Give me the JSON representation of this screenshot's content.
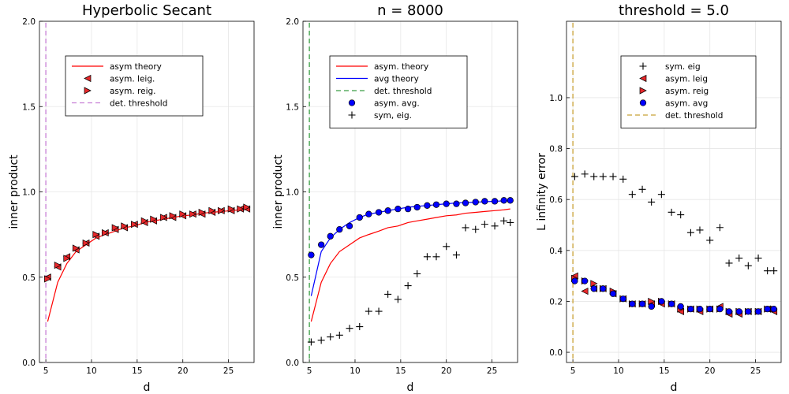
{
  "chart_data": [
    {
      "type": "scatter",
      "title": "Hyperbolic Secant",
      "xlabel": "d",
      "ylabel": "inner product",
      "xlim": [
        4.3,
        27.8
      ],
      "ylim": [
        0,
        2
      ],
      "xticks": [
        5,
        10,
        15,
        20,
        25
      ],
      "yticks": [
        0,
        0.5,
        1,
        1.5,
        2
      ],
      "ytick_labels": [
        "0.0",
        "0.5",
        "1.0",
        "1.5",
        "2.0"
      ],
      "legend": [
        "asym theory",
        "asym. leig.",
        "asym. reig.",
        "det. threshold"
      ],
      "vline": 5,
      "series": [
        {
          "name": "asym theory",
          "kind": "line",
          "color": "#ff0000",
          "x": [
            5.2,
            6.3,
            7.3,
            8.3,
            9.4,
            10.5,
            11.5,
            12.6,
            13.6,
            14.7,
            15.8,
            16.8,
            17.9,
            18.9,
            20.0,
            21.1,
            22.1,
            23.2,
            24.2,
            25.3,
            26.3,
            27.0
          ],
          "y": [
            0.24,
            0.47,
            0.58,
            0.65,
            0.69,
            0.73,
            0.75,
            0.77,
            0.79,
            0.8,
            0.82,
            0.83,
            0.84,
            0.85,
            0.86,
            0.865,
            0.875,
            0.88,
            0.885,
            0.89,
            0.895,
            0.9
          ]
        },
        {
          "name": "asym. leig.",
          "kind": "marker",
          "marker": "ltri",
          "color": "#e8282b",
          "x": [
            5.2,
            6.3,
            7.3,
            8.3,
            9.4,
            10.5,
            11.5,
            12.6,
            13.6,
            14.7,
            15.8,
            16.8,
            17.9,
            18.9,
            20.0,
            21.1,
            22.1,
            23.2,
            24.2,
            25.3,
            26.3,
            27.0
          ],
          "y": [
            0.5,
            0.56,
            0.62,
            0.66,
            0.7,
            0.74,
            0.76,
            0.78,
            0.79,
            0.81,
            0.82,
            0.83,
            0.85,
            0.85,
            0.86,
            0.87,
            0.87,
            0.88,
            0.89,
            0.89,
            0.9,
            0.9
          ]
        },
        {
          "name": "asym. reig.",
          "kind": "marker",
          "marker": "rtri",
          "color": "#e8282b",
          "x": [
            5.2,
            6.3,
            7.3,
            8.3,
            9.4,
            10.5,
            11.5,
            12.6,
            13.6,
            14.7,
            15.8,
            16.8,
            17.9,
            18.9,
            20.0,
            21.1,
            22.1,
            23.2,
            24.2,
            25.3,
            26.3,
            27.0
          ],
          "y": [
            0.49,
            0.57,
            0.61,
            0.67,
            0.7,
            0.75,
            0.76,
            0.79,
            0.8,
            0.81,
            0.83,
            0.84,
            0.85,
            0.86,
            0.87,
            0.87,
            0.88,
            0.89,
            0.89,
            0.9,
            0.9,
            0.91
          ]
        }
      ]
    },
    {
      "type": "scatter",
      "title": "n = 8000",
      "xlabel": "d",
      "ylabel": "inner product",
      "xlim": [
        4.3,
        27.8
      ],
      "ylim": [
        0,
        2
      ],
      "xticks": [
        5,
        10,
        15,
        20,
        25
      ],
      "yticks": [
        0,
        0.5,
        1,
        1.5,
        2
      ],
      "ytick_labels": [
        "0.0",
        "0.5",
        "1.0",
        "1.5",
        "2.0"
      ],
      "legend": [
        "asym. theory",
        "avg theory",
        "det. threshold",
        "asym. avg.",
        "sym, eig."
      ],
      "vline": 5,
      "series": [
        {
          "name": "asym. theory",
          "kind": "line",
          "color": "#ff0000",
          "x": [
            5.2,
            6.3,
            7.3,
            8.3,
            9.4,
            10.5,
            11.5,
            12.6,
            13.6,
            14.7,
            15.8,
            16.8,
            17.9,
            18.9,
            20.0,
            21.1,
            22.1,
            23.2,
            24.2,
            25.3,
            26.3,
            27.0
          ],
          "y": [
            0.24,
            0.47,
            0.58,
            0.65,
            0.69,
            0.73,
            0.75,
            0.77,
            0.79,
            0.8,
            0.82,
            0.83,
            0.84,
            0.85,
            0.86,
            0.865,
            0.875,
            0.88,
            0.885,
            0.89,
            0.895,
            0.9
          ]
        },
        {
          "name": "avg theory",
          "kind": "line",
          "color": "#0000ff",
          "x": [
            5.2,
            6.3,
            7.3,
            8.3,
            9.4,
            10.5,
            11.5,
            12.6,
            13.6,
            14.7,
            15.8,
            16.8,
            17.9,
            18.9,
            20.0,
            21.1,
            22.1,
            23.2,
            24.2,
            25.3,
            26.3,
            27.0
          ],
          "y": [
            0.39,
            0.65,
            0.73,
            0.78,
            0.82,
            0.85,
            0.87,
            0.88,
            0.89,
            0.9,
            0.91,
            0.915,
            0.92,
            0.925,
            0.93,
            0.935,
            0.937,
            0.94,
            0.942,
            0.945,
            0.947,
            0.95
          ]
        },
        {
          "name": "asym. avg.",
          "kind": "marker",
          "marker": "circle",
          "color": "#0000ff",
          "x": [
            5.2,
            6.3,
            7.3,
            8.3,
            9.4,
            10.5,
            11.5,
            12.6,
            13.6,
            14.7,
            15.8,
            16.8,
            17.9,
            18.9,
            20.0,
            21.1,
            22.1,
            23.2,
            24.2,
            25.3,
            26.3,
            27.0
          ],
          "y": [
            0.63,
            0.69,
            0.74,
            0.78,
            0.8,
            0.85,
            0.87,
            0.88,
            0.89,
            0.9,
            0.9,
            0.91,
            0.92,
            0.925,
            0.93,
            0.93,
            0.935,
            0.94,
            0.945,
            0.945,
            0.95,
            0.95
          ]
        },
        {
          "name": "sym, eig.",
          "kind": "marker",
          "marker": "plus",
          "color": "#000000",
          "x": [
            5.2,
            6.3,
            7.3,
            8.3,
            9.4,
            10.5,
            11.5,
            12.6,
            13.6,
            14.7,
            15.8,
            16.8,
            17.9,
            18.9,
            20.0,
            21.1,
            22.1,
            23.2,
            24.2,
            25.3,
            26.3,
            27.0
          ],
          "y": [
            0.12,
            0.13,
            0.15,
            0.16,
            0.2,
            0.21,
            0.3,
            0.3,
            0.4,
            0.37,
            0.45,
            0.52,
            0.62,
            0.62,
            0.68,
            0.63,
            0.79,
            0.78,
            0.81,
            0.8,
            0.83,
            0.82
          ]
        }
      ]
    },
    {
      "type": "scatter",
      "title": "threshold = 5.0",
      "xlabel": "d",
      "ylabel": "L infinity error",
      "xlim": [
        4.3,
        27.8
      ],
      "ylim": [
        -0.04,
        1.3
      ],
      "xticks": [
        5,
        10,
        15,
        20,
        25
      ],
      "yticks": [
        0,
        0.2,
        0.4,
        0.6,
        0.8,
        1.0
      ],
      "ytick_labels": [
        "0.0",
        "0.2",
        "0.4",
        "0.6",
        "0.8",
        "1.0"
      ],
      "legend": [
        "sym. eig",
        "asym. leig",
        "asym. reig",
        "asym. avg",
        "det. threshold"
      ],
      "vline": 5,
      "series": [
        {
          "name": "sym. eig",
          "kind": "marker",
          "marker": "plus",
          "color": "#000000",
          "x": [
            5.2,
            6.3,
            7.3,
            8.3,
            9.4,
            10.5,
            11.5,
            12.6,
            13.6,
            14.7,
            15.8,
            16.8,
            17.9,
            18.9,
            20.0,
            21.1,
            22.1,
            23.2,
            24.2,
            25.3,
            26.3,
            27.0
          ],
          "y": [
            0.69,
            0.7,
            0.69,
            0.69,
            0.69,
            0.68,
            0.62,
            0.64,
            0.59,
            0.62,
            0.55,
            0.54,
            0.47,
            0.48,
            0.44,
            0.49,
            0.35,
            0.37,
            0.34,
            0.37,
            0.32,
            0.32
          ]
        },
        {
          "name": "asym. leig",
          "kind": "marker",
          "marker": "ltri",
          "color": "#e8282b",
          "x": [
            5.2,
            6.3,
            7.3,
            8.3,
            9.4,
            10.5,
            11.5,
            12.6,
            13.6,
            14.7,
            15.8,
            16.8,
            17.9,
            18.9,
            20.0,
            21.1,
            22.1,
            23.2,
            24.2,
            25.3,
            26.3,
            27.0
          ],
          "y": [
            0.3,
            0.24,
            0.25,
            0.25,
            0.23,
            0.21,
            0.19,
            0.19,
            0.19,
            0.19,
            0.19,
            0.16,
            0.17,
            0.16,
            0.17,
            0.18,
            0.15,
            0.15,
            0.16,
            0.16,
            0.17,
            0.16
          ]
        },
        {
          "name": "asym. reig",
          "kind": "marker",
          "marker": "rtri",
          "color": "#e8282b",
          "x": [
            5.2,
            6.3,
            7.3,
            8.3,
            9.4,
            10.5,
            11.5,
            12.6,
            13.6,
            14.7,
            15.8,
            16.8,
            17.9,
            18.9,
            20.0,
            21.1,
            22.1,
            23.2,
            24.2,
            25.3,
            26.3,
            27.0
          ],
          "y": [
            0.29,
            0.28,
            0.27,
            0.25,
            0.24,
            0.21,
            0.19,
            0.19,
            0.2,
            0.2,
            0.19,
            0.17,
            0.17,
            0.17,
            0.17,
            0.17,
            0.16,
            0.16,
            0.16,
            0.16,
            0.17,
            0.17
          ]
        },
        {
          "name": "asym. avg",
          "kind": "marker",
          "marker": "circle",
          "color": "#0000ff",
          "x": [
            5.2,
            6.3,
            7.3,
            8.3,
            9.4,
            10.5,
            11.5,
            12.6,
            13.6,
            14.7,
            15.8,
            16.8,
            17.9,
            18.9,
            20.0,
            21.1,
            22.1,
            23.2,
            24.2,
            25.3,
            26.3,
            27.0
          ],
          "y": [
            0.28,
            0.28,
            0.25,
            0.25,
            0.23,
            0.21,
            0.19,
            0.19,
            0.18,
            0.2,
            0.19,
            0.18,
            0.17,
            0.17,
            0.17,
            0.17,
            0.16,
            0.16,
            0.16,
            0.16,
            0.17,
            0.17
          ]
        }
      ]
    }
  ],
  "colors": {
    "threshold_panel1": "#c77fd6",
    "threshold_panel2": "#3a9e44",
    "threshold_panel3": "#c8a035",
    "red": "#e8282b",
    "blue": "#0000ff",
    "black": "#000000"
  }
}
